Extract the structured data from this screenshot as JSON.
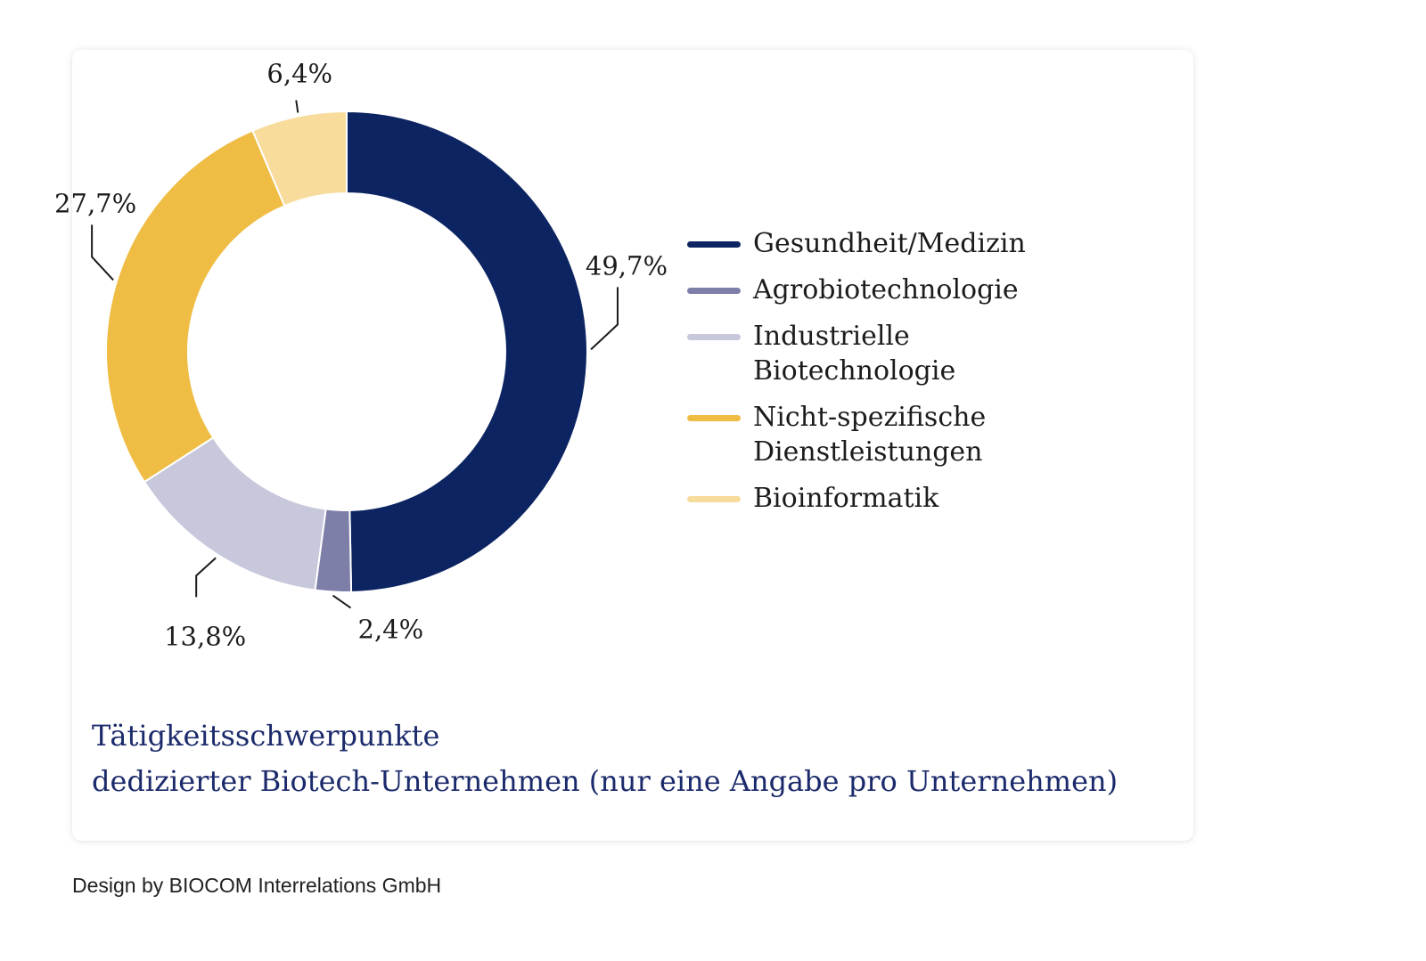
{
  "chart_data": {
    "type": "pie",
    "donut": true,
    "title": "",
    "categories": [
      "Gesundheit/Medizin",
      "Agrobiotechnologie",
      "Industrielle\nBiotechnologie",
      "Nicht-spezifische\nDienstleistungen",
      "Bioinformatik"
    ],
    "values": [
      49.7,
      2.4,
      13.8,
      27.7,
      6.4
    ],
    "labels": [
      "49,7%",
      "2,4%",
      "13,8%",
      "27,7%",
      "6,4%"
    ],
    "colors": [
      "#0c2461",
      "#7e7fa8",
      "#c8c8dc",
      "#efbd44",
      "#f7dc9c"
    ],
    "legend_position": "right"
  },
  "caption": {
    "line1": "Tätigkeitsschwerpunkte",
    "line2": "dedizierter Biotech-Unternehmen (nur eine Angabe pro Unternehmen)"
  },
  "credit": "Design by BIOCOM Interrelations GmbH"
}
